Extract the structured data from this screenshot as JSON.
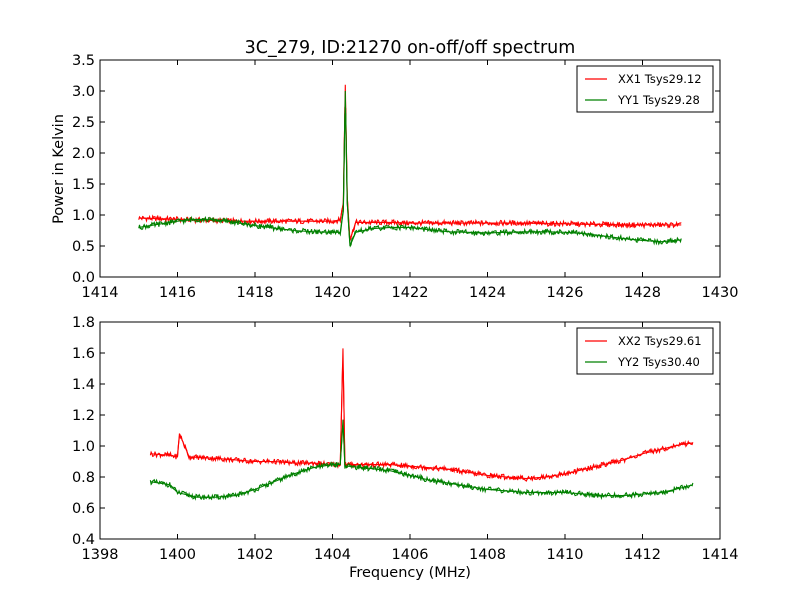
{
  "figure": {
    "title": "3C_279, ID:21270 on-off/off spectrum",
    "xlabel": "Frequency (MHz)"
  },
  "colors": {
    "xx": "#ff0000",
    "yy": "#008000",
    "axis": "#000000",
    "background": "#ffffff"
  },
  "chart_data": [
    {
      "type": "line",
      "title": "3C_279, ID:21270 on-off/off spectrum",
      "xlabel": "",
      "ylabel": "Power in Kelvin",
      "xlim": [
        1414,
        1430
      ],
      "ylim": [
        0,
        3.5
      ],
      "xticks": [
        1414,
        1416,
        1418,
        1420,
        1422,
        1424,
        1426,
        1428,
        1430
      ],
      "yticks": [
        0.0,
        0.5,
        1.0,
        1.5,
        2.0,
        2.5,
        3.0,
        3.5
      ],
      "xtick_labels": [
        "1414",
        "1416",
        "1418",
        "1420",
        "1422",
        "1424",
        "1426",
        "1428",
        "1430"
      ],
      "ytick_labels": [
        "0.0",
        "0.5",
        "1.0",
        "1.5",
        "2.0",
        "2.5",
        "3.0",
        "3.5"
      ],
      "legend": "top-right",
      "grid": false,
      "series": [
        {
          "name": "XX1 Tsys29.12",
          "color": "#ff0000",
          "x": [
            1415.0,
            1415.5,
            1416.0,
            1416.5,
            1417.0,
            1417.5,
            1418.0,
            1418.5,
            1419.0,
            1419.5,
            1420.0,
            1420.2,
            1420.28,
            1420.33,
            1420.38,
            1420.45,
            1420.6,
            1421.0,
            1421.5,
            1422.0,
            1422.5,
            1423.0,
            1423.5,
            1424.0,
            1424.5,
            1425.0,
            1425.5,
            1426.0,
            1426.5,
            1427.0,
            1427.5,
            1428.0,
            1428.5,
            1429.0
          ],
          "y": [
            0.95,
            0.94,
            0.93,
            0.92,
            0.91,
            0.9,
            0.9,
            0.9,
            0.9,
            0.9,
            0.9,
            0.92,
            1.2,
            3.1,
            1.3,
            0.6,
            0.88,
            0.88,
            0.88,
            0.87,
            0.87,
            0.87,
            0.87,
            0.87,
            0.87,
            0.87,
            0.86,
            0.86,
            0.85,
            0.85,
            0.84,
            0.84,
            0.84,
            0.84
          ]
        },
        {
          "name": "YY1 Tsys29.28",
          "color": "#008000",
          "x": [
            1415.0,
            1415.5,
            1416.0,
            1416.5,
            1417.0,
            1417.5,
            1418.0,
            1418.5,
            1419.0,
            1419.5,
            1420.0,
            1420.2,
            1420.28,
            1420.33,
            1420.38,
            1420.45,
            1420.6,
            1421.0,
            1421.5,
            1422.0,
            1422.5,
            1423.0,
            1423.5,
            1424.0,
            1424.5,
            1425.0,
            1425.5,
            1426.0,
            1426.5,
            1427.0,
            1427.5,
            1428.0,
            1428.5,
            1429.0
          ],
          "y": [
            0.8,
            0.85,
            0.9,
            0.93,
            0.92,
            0.88,
            0.83,
            0.79,
            0.75,
            0.73,
            0.72,
            0.72,
            1.1,
            3.0,
            1.2,
            0.5,
            0.72,
            0.78,
            0.8,
            0.8,
            0.76,
            0.73,
            0.72,
            0.71,
            0.72,
            0.73,
            0.73,
            0.72,
            0.7,
            0.66,
            0.62,
            0.59,
            0.57,
            0.6
          ]
        }
      ]
    },
    {
      "type": "line",
      "title": "",
      "xlabel": "Frequency (MHz)",
      "ylabel": "",
      "xlim": [
        1398,
        1414
      ],
      "ylim": [
        0.4,
        1.8
      ],
      "xticks": [
        1398,
        1400,
        1402,
        1404,
        1406,
        1408,
        1410,
        1412,
        1414
      ],
      "yticks": [
        0.4,
        0.6,
        0.8,
        1.0,
        1.2,
        1.4,
        1.6,
        1.8
      ],
      "xtick_labels": [
        "1398",
        "1400",
        "1402",
        "1404",
        "1406",
        "1408",
        "1410",
        "1412",
        "1414"
      ],
      "ytick_labels": [
        "0.4",
        "0.6",
        "0.8",
        "1.0",
        "1.2",
        "1.4",
        "1.6",
        "1.8"
      ],
      "legend": "top-right",
      "grid": false,
      "series": [
        {
          "name": "XX2 Tsys29.61",
          "color": "#ff0000",
          "x": [
            1399.3,
            1399.8,
            1400.0,
            1400.05,
            1400.3,
            1401.0,
            1401.5,
            1402.0,
            1402.5,
            1403.0,
            1403.5,
            1404.0,
            1404.2,
            1404.27,
            1404.32,
            1404.4,
            1404.8,
            1405.5,
            1406.0,
            1406.5,
            1407.0,
            1407.5,
            1408.0,
            1408.5,
            1409.0,
            1409.5,
            1410.0,
            1410.5,
            1411.0,
            1411.5,
            1412.0,
            1412.5,
            1413.0,
            1413.3
          ],
          "y": [
            0.95,
            0.94,
            0.93,
            1.08,
            0.93,
            0.92,
            0.91,
            0.9,
            0.9,
            0.89,
            0.89,
            0.88,
            0.88,
            1.63,
            0.88,
            0.88,
            0.88,
            0.88,
            0.87,
            0.86,
            0.85,
            0.83,
            0.81,
            0.8,
            0.79,
            0.8,
            0.82,
            0.85,
            0.88,
            0.91,
            0.95,
            0.98,
            1.01,
            1.02
          ]
        },
        {
          "name": "YY2 Tsys30.40",
          "color": "#008000",
          "x": [
            1399.3,
            1399.8,
            1400.0,
            1400.5,
            1401.0,
            1401.5,
            1402.0,
            1402.5,
            1403.0,
            1403.5,
            1404.0,
            1404.2,
            1404.27,
            1404.32,
            1404.4,
            1404.8,
            1405.5,
            1406.0,
            1406.5,
            1407.0,
            1407.5,
            1408.0,
            1408.5,
            1409.0,
            1409.5,
            1410.0,
            1410.5,
            1411.0,
            1411.5,
            1412.0,
            1412.5,
            1413.0,
            1413.3
          ],
          "y": [
            0.77,
            0.75,
            0.7,
            0.67,
            0.67,
            0.68,
            0.72,
            0.77,
            0.82,
            0.86,
            0.88,
            0.88,
            1.17,
            0.87,
            0.87,
            0.86,
            0.84,
            0.81,
            0.78,
            0.76,
            0.74,
            0.72,
            0.71,
            0.7,
            0.7,
            0.7,
            0.69,
            0.68,
            0.68,
            0.69,
            0.7,
            0.73,
            0.75
          ]
        }
      ]
    }
  ]
}
